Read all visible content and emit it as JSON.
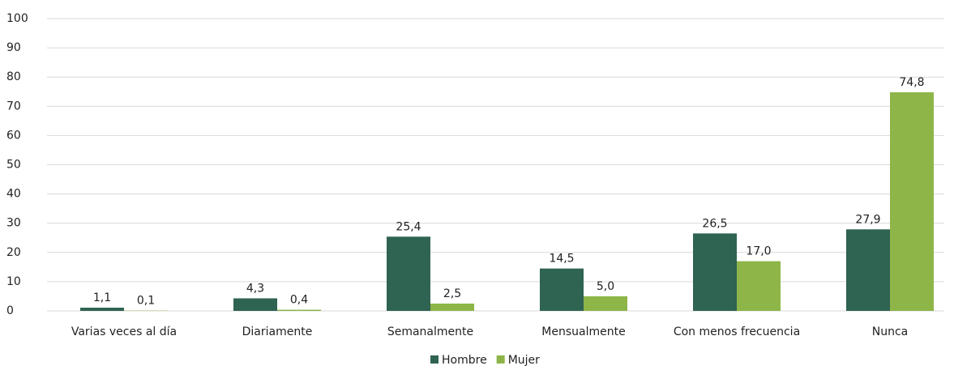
{
  "chart_data": {
    "type": "bar",
    "categories": [
      "Varias veces al día",
      "Diariamente",
      "Semanalmente",
      "Mensualmente",
      "Con menos frecuencia",
      "Nunca"
    ],
    "series": [
      {
        "name": "Hombre",
        "color": "#2f6352",
        "values": [
          1.1,
          4.3,
          25.4,
          14.5,
          26.5,
          27.9
        ],
        "value_labels": [
          "1,1",
          "4,3",
          "25,4",
          "14,5",
          "26,5",
          "27,9"
        ]
      },
      {
        "name": "Mujer",
        "color": "#8db548",
        "values": [
          0.1,
          0.4,
          2.5,
          5.0,
          17.0,
          74.8
        ],
        "value_labels": [
          "0,1",
          "0,4",
          "2,5",
          "5,0",
          "17,0",
          "74,8"
        ]
      }
    ],
    "ylim": [
      0,
      100
    ],
    "yticks": [
      0,
      10,
      20,
      30,
      40,
      50,
      60,
      70,
      80,
      90,
      100
    ],
    "grid": true,
    "legend": "bottom"
  }
}
